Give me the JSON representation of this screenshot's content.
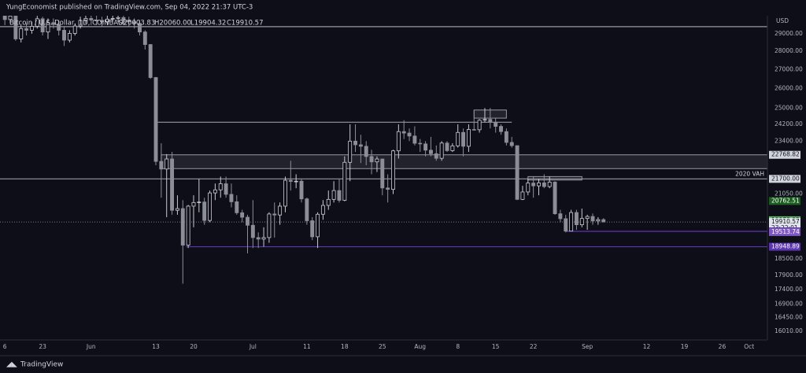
{
  "header": {
    "publisher": "YungEconomist published on TradingView.com, Sep 04, 2022 21:37 UTC-3"
  },
  "footer": {
    "brand": "TradingView"
  },
  "chart_data": {
    "type": "candlestick",
    "title": "Bitcoin / U.S. Dollar, 1D, COINBASE",
    "ohlc_legend": [
      {
        "value": 20003.83,
        "label": "O20003.83"
      },
      {
        "value": 20060,
        "label": "H20060.00"
      },
      {
        "value": 19904.32,
        "label": "L19904.32"
      },
      {
        "value": 19910.57,
        "label": "C19910.57"
      }
    ],
    "currency": "USD",
    "log_scale": true,
    "grid": false,
    "up_color": "#c9cbd1",
    "down_color": "#8b8e97",
    "xlim": [
      -16.9,
      125.4
    ],
    "ylim": [
      15730,
      30060
    ],
    "xticks": [
      {
        "value": -16,
        "label": "6"
      },
      {
        "value": -9,
        "label": "23"
      },
      {
        "value": 0,
        "label": "Jun"
      },
      {
        "value": 12,
        "label": "13"
      },
      {
        "value": 19,
        "label": "20"
      },
      {
        "value": 30,
        "label": "Jul"
      },
      {
        "value": 40,
        "label": "11"
      },
      {
        "value": 47,
        "label": "18"
      },
      {
        "value": 54,
        "label": "25"
      },
      {
        "value": 61,
        "label": "Aug"
      },
      {
        "value": 68,
        "label": "8"
      },
      {
        "value": 75,
        "label": "15"
      },
      {
        "value": 82,
        "label": "22"
      },
      {
        "value": 92,
        "label": "Sep"
      },
      {
        "value": 103,
        "label": "12"
      },
      {
        "value": 110,
        "label": "19"
      },
      {
        "value": 117,
        "label": "26"
      },
      {
        "value": 122,
        "label": "Oct"
      }
    ],
    "yticks": [
      {
        "value": 29000,
        "label": "29000.00"
      },
      {
        "value": 28000,
        "label": "28000.00"
      },
      {
        "value": 27000,
        "label": "27000.00"
      },
      {
        "value": 26000,
        "label": "26000.00"
      },
      {
        "value": 25000,
        "label": "25000.00"
      },
      {
        "value": 24200,
        "label": "24200.00"
      },
      {
        "value": 23400,
        "label": "23400.00"
      },
      {
        "value": 21050,
        "label": "21050.00"
      },
      {
        "value": 18500,
        "label": "18500.00"
      },
      {
        "value": 17900,
        "label": "17900.00"
      },
      {
        "value": 17400,
        "label": "17400.00"
      },
      {
        "value": 16900,
        "label": "16900.00"
      },
      {
        "value": 16450,
        "label": "16450.00"
      },
      {
        "value": 16010,
        "label": "16010.00"
      }
    ],
    "x": [
      -16,
      -15,
      -14,
      -13,
      -12,
      -11,
      -10,
      -9,
      -8,
      -7,
      -6,
      -5,
      -4,
      -3,
      -2,
      -1,
      0,
      1,
      2,
      3,
      4,
      5,
      6,
      7,
      8,
      9,
      10,
      11,
      12,
      13,
      14,
      15,
      16,
      17,
      18,
      19,
      20,
      21,
      22,
      23,
      24,
      25,
      26,
      27,
      28,
      29,
      30,
      31,
      32,
      33,
      34,
      35,
      36,
      37,
      38,
      39,
      40,
      41,
      42,
      43,
      44,
      45,
      46,
      47,
      48,
      49,
      50,
      51,
      52,
      53,
      54,
      55,
      56,
      57,
      58,
      59,
      60,
      61,
      62,
      63,
      64,
      65,
      66,
      67,
      68,
      69,
      70,
      71,
      72,
      73,
      74,
      75,
      76,
      77,
      78,
      79,
      80,
      81,
      82,
      83,
      84,
      85,
      86,
      87,
      88,
      89,
      90,
      91,
      92,
      93,
      94,
      95
    ],
    "open": [
      30200,
      29830,
      30040,
      28700,
      29300,
      29200,
      29430,
      29880,
      29100,
      29650,
      29540,
      29200,
      28630,
      29020,
      29450,
      29780,
      29900,
      29800,
      29750,
      29700,
      29860,
      29900,
      29950,
      29800,
      29700,
      29600,
      29100,
      28380,
      26570,
      22470,
      22130,
      22580,
      20380,
      20450,
      19010,
      20550,
      20700,
      20720,
      19970,
      21100,
      21230,
      21490,
      21040,
      20730,
      20280,
      20100,
      19780,
      19300,
      19240,
      19300,
      20230,
      20190,
      20550,
      21640,
      21590,
      21600,
      20850,
      19960,
      19330,
      20220,
      20580,
      20830,
      21200,
      20790,
      22430,
      23400,
      23230,
      23160,
      22690,
      22450,
      22580,
      21310,
      21250,
      22950,
      23850,
      23780,
      23640,
      23300,
      23270,
      22980,
      22820,
      22610,
      23310,
      22960,
      23180,
      23810,
      23160,
      23950,
      23940,
      24400,
      24440,
      24300,
      24100,
      23850,
      23340,
      23190,
      20830,
      21140,
      21520,
      21400,
      21530,
      21370,
      21560,
      20240,
      20040,
      19550,
      20290,
      19800,
      20050,
      20130,
      19950,
      20003.83
    ],
    "high": [
      30400,
      30300,
      30200,
      29500,
      29600,
      29700,
      30050,
      30000,
      29900,
      29900,
      29800,
      29400,
      29200,
      29600,
      30000,
      30200,
      30200,
      30100,
      30000,
      30100,
      30100,
      30300,
      30200,
      30000,
      29900,
      29800,
      29200,
      28400,
      26600,
      23300,
      22800,
      22900,
      21000,
      20800,
      20600,
      21000,
      21700,
      20900,
      21200,
      21500,
      21800,
      21800,
      21500,
      21000,
      20400,
      20200,
      20800,
      19500,
      19700,
      20300,
      20700,
      20700,
      21800,
      22500,
      21900,
      21700,
      20900,
      20100,
      20300,
      20800,
      21200,
      21600,
      21700,
      22700,
      24200,
      24200,
      23700,
      23400,
      23000,
      22700,
      22600,
      21900,
      23000,
      24200,
      24400,
      24000,
      24100,
      23500,
      23400,
      23600,
      23200,
      23400,
      23400,
      23300,
      24200,
      24000,
      24200,
      24900,
      24450,
      25000,
      25000,
      24500,
      24200,
      24000,
      23600,
      23200,
      21400,
      21700,
      21800,
      21700,
      21900,
      21800,
      21600,
      20400,
      20200,
      20400,
      20400,
      20450,
      20200,
      20250,
      20100,
      20060
    ],
    "low": [
      29500,
      29600,
      28600,
      28500,
      28900,
      29000,
      29300,
      28900,
      28700,
      29300,
      28900,
      28300,
      28500,
      28900,
      29300,
      29600,
      29500,
      29500,
      29400,
      29500,
      29700,
      29700,
      29500,
      29400,
      29300,
      28900,
      28100,
      26500,
      22300,
      20900,
      20100,
      20200,
      20200,
      17600,
      18900,
      19700,
      20300,
      19800,
      19900,
      20800,
      20900,
      20900,
      20500,
      20200,
      19900,
      18700,
      18900,
      18900,
      18950,
      19100,
      19300,
      19800,
      20300,
      21200,
      21300,
      20700,
      19800,
      19200,
      18900,
      20000,
      20400,
      20700,
      20700,
      20750,
      21600,
      22900,
      22400,
      22300,
      21900,
      22000,
      21000,
      20700,
      21050,
      22600,
      23500,
      23400,
      23200,
      22900,
      22700,
      22700,
      22500,
      22500,
      22900,
      22900,
      23100,
      22700,
      22900,
      23900,
      23800,
      24300,
      24000,
      23800,
      23700,
      23200,
      23100,
      20800,
      20800,
      21000,
      20900,
      21000,
      21300,
      21300,
      20200,
      19900,
      19500,
      19550,
      19600,
      19700,
      19600,
      19800,
      19800,
      19904.32
    ],
    "close": [
      29830,
      30040,
      28700,
      29300,
      29200,
      29430,
      29880,
      29100,
      29650,
      29540,
      29200,
      28630,
      29020,
      29450,
      29780,
      29900,
      29800,
      29750,
      29700,
      29860,
      29900,
      29950,
      29800,
      29700,
      29600,
      29100,
      28380,
      26570,
      22470,
      22130,
      22580,
      20380,
      20450,
      19010,
      20550,
      20700,
      20720,
      19970,
      21100,
      21230,
      21490,
      21040,
      20730,
      20280,
      20100,
      19780,
      19300,
      19240,
      19300,
      20230,
      20190,
      20550,
      21640,
      21590,
      21600,
      20850,
      19960,
      19330,
      20220,
      20580,
      20830,
      21200,
      20790,
      22430,
      23400,
      23230,
      23160,
      22690,
      22450,
      22580,
      21310,
      21250,
      22950,
      23850,
      23780,
      23640,
      23300,
      23270,
      22980,
      22820,
      22610,
      23310,
      22960,
      23180,
      23810,
      23160,
      23950,
      23940,
      24400,
      24440,
      24300,
      24100,
      23850,
      23340,
      23190,
      20830,
      21140,
      21520,
      21400,
      21530,
      21370,
      21560,
      20240,
      20040,
      19550,
      20290,
      19800,
      20050,
      20130,
      19950,
      20003.83,
      19910.57
    ],
    "levels": [
      {
        "value": 29410,
        "color": "#9598a1"
      },
      {
        "value": 24300,
        "from": 12,
        "to": 78,
        "color": "#9598a1"
      },
      {
        "value": 21700,
        "label": "2020 VAH",
        "color": "#9598a1"
      },
      {
        "value": 19540.14,
        "from": 88,
        "color": "#5e35b1"
      },
      {
        "value": 18948.89,
        "from": 17.6,
        "color": "#5e35b1"
      }
    ],
    "zones": [
      {
        "top": 22768.82,
        "bottom": 22150,
        "from": 13
      },
      {
        "top": 24900,
        "bottom": 24500,
        "from": 71,
        "to": 77
      },
      {
        "top": 21800,
        "bottom": 21650,
        "from": 81,
        "to": 91
      }
    ],
    "price_tags": [
      {
        "value": 22768.82,
        "bg": "#d1d4dc",
        "fg": "#131722"
      },
      {
        "value": 21700,
        "label": "21700.00",
        "bg": "#d1d4dc",
        "fg": "#131722"
      },
      {
        "value": 20762.51,
        "bg": "#1b5e20",
        "fg": "#ffffff"
      },
      {
        "value": 19978.92,
        "bg": "#66bb6a",
        "fg": "#131722"
      },
      {
        "value": 19910.57,
        "bg": "#e0e3eb",
        "fg": "#131722",
        "countdown": "23:22:01"
      },
      {
        "value": 19540.14,
        "bg": "#5e35b1",
        "fg": "#ffffff"
      },
      {
        "value": 19513.74,
        "bg": "#7e57c2",
        "fg": "#ffffff"
      },
      {
        "value": 18948.89,
        "bg": "#5e35b1",
        "fg": "#ffffff"
      }
    ]
  }
}
